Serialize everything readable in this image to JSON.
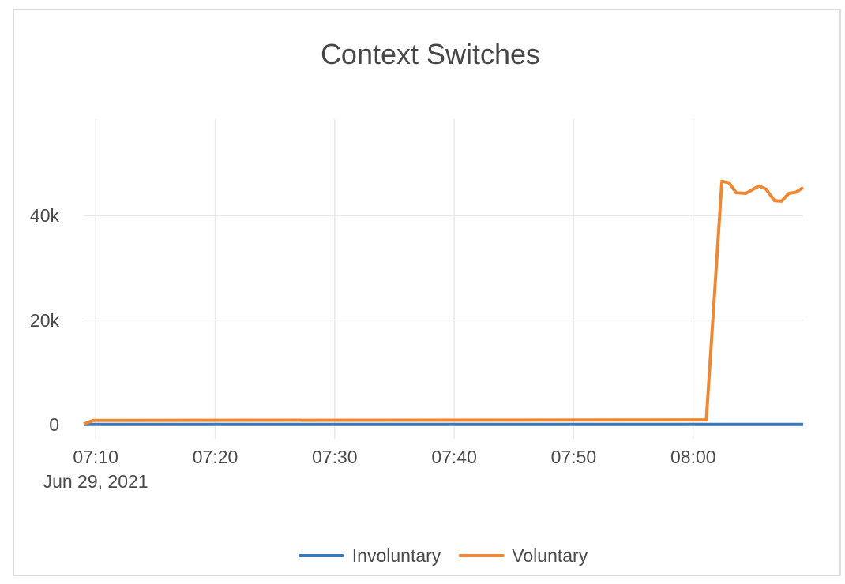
{
  "theme": {
    "background": "#ffffff",
    "card_border_color": "#dcdcdc",
    "grid_color": "#e9e9e9",
    "text_color": "#4a4a4a",
    "title_color": "#474747"
  },
  "chart_data": {
    "type": "line",
    "title": "Context Switches",
    "grid": true,
    "legend_position": "bottom-center",
    "x_axis": {
      "date_label": "Jun 29, 2021",
      "tick_labels": [
        "07:10",
        "07:20",
        "07:30",
        "07:40",
        "07:50",
        "08:00"
      ],
      "ticks": [
        {
          "label": "07:10",
          "t": 10
        },
        {
          "label": "07:20",
          "t": 20
        },
        {
          "label": "07:30",
          "t": 30
        },
        {
          "label": "07:40",
          "t": 40
        },
        {
          "label": "07:50",
          "t": 50
        },
        {
          "label": "08:00",
          "t": 60
        }
      ],
      "range_minutes_after_0700": [
        9.0,
        69.2
      ]
    },
    "y_axis": {
      "ticks": [
        {
          "label": "0",
          "v": 0
        },
        {
          "label": "20k",
          "v": 20000
        },
        {
          "label": "40k",
          "v": 40000
        }
      ],
      "range": [
        -1500,
        58500
      ]
    },
    "series": [
      {
        "name": "Involuntary",
        "color": "#3c79b5",
        "points": [
          [
            9.0,
            50
          ],
          [
            69.2,
            50
          ]
        ]
      },
      {
        "name": "Voluntary",
        "color": "#ed8936",
        "points": [
          [
            9.0,
            100
          ],
          [
            9.8,
            800
          ],
          [
            61.1,
            900
          ],
          [
            62.4,
            46600
          ],
          [
            63.0,
            46300
          ],
          [
            63.6,
            44400
          ],
          [
            64.4,
            44300
          ],
          [
            65.5,
            45700
          ],
          [
            66.1,
            45100
          ],
          [
            66.8,
            42900
          ],
          [
            67.4,
            42800
          ],
          [
            68.0,
            44300
          ],
          [
            68.6,
            44500
          ],
          [
            69.2,
            45400
          ]
        ]
      }
    ]
  }
}
